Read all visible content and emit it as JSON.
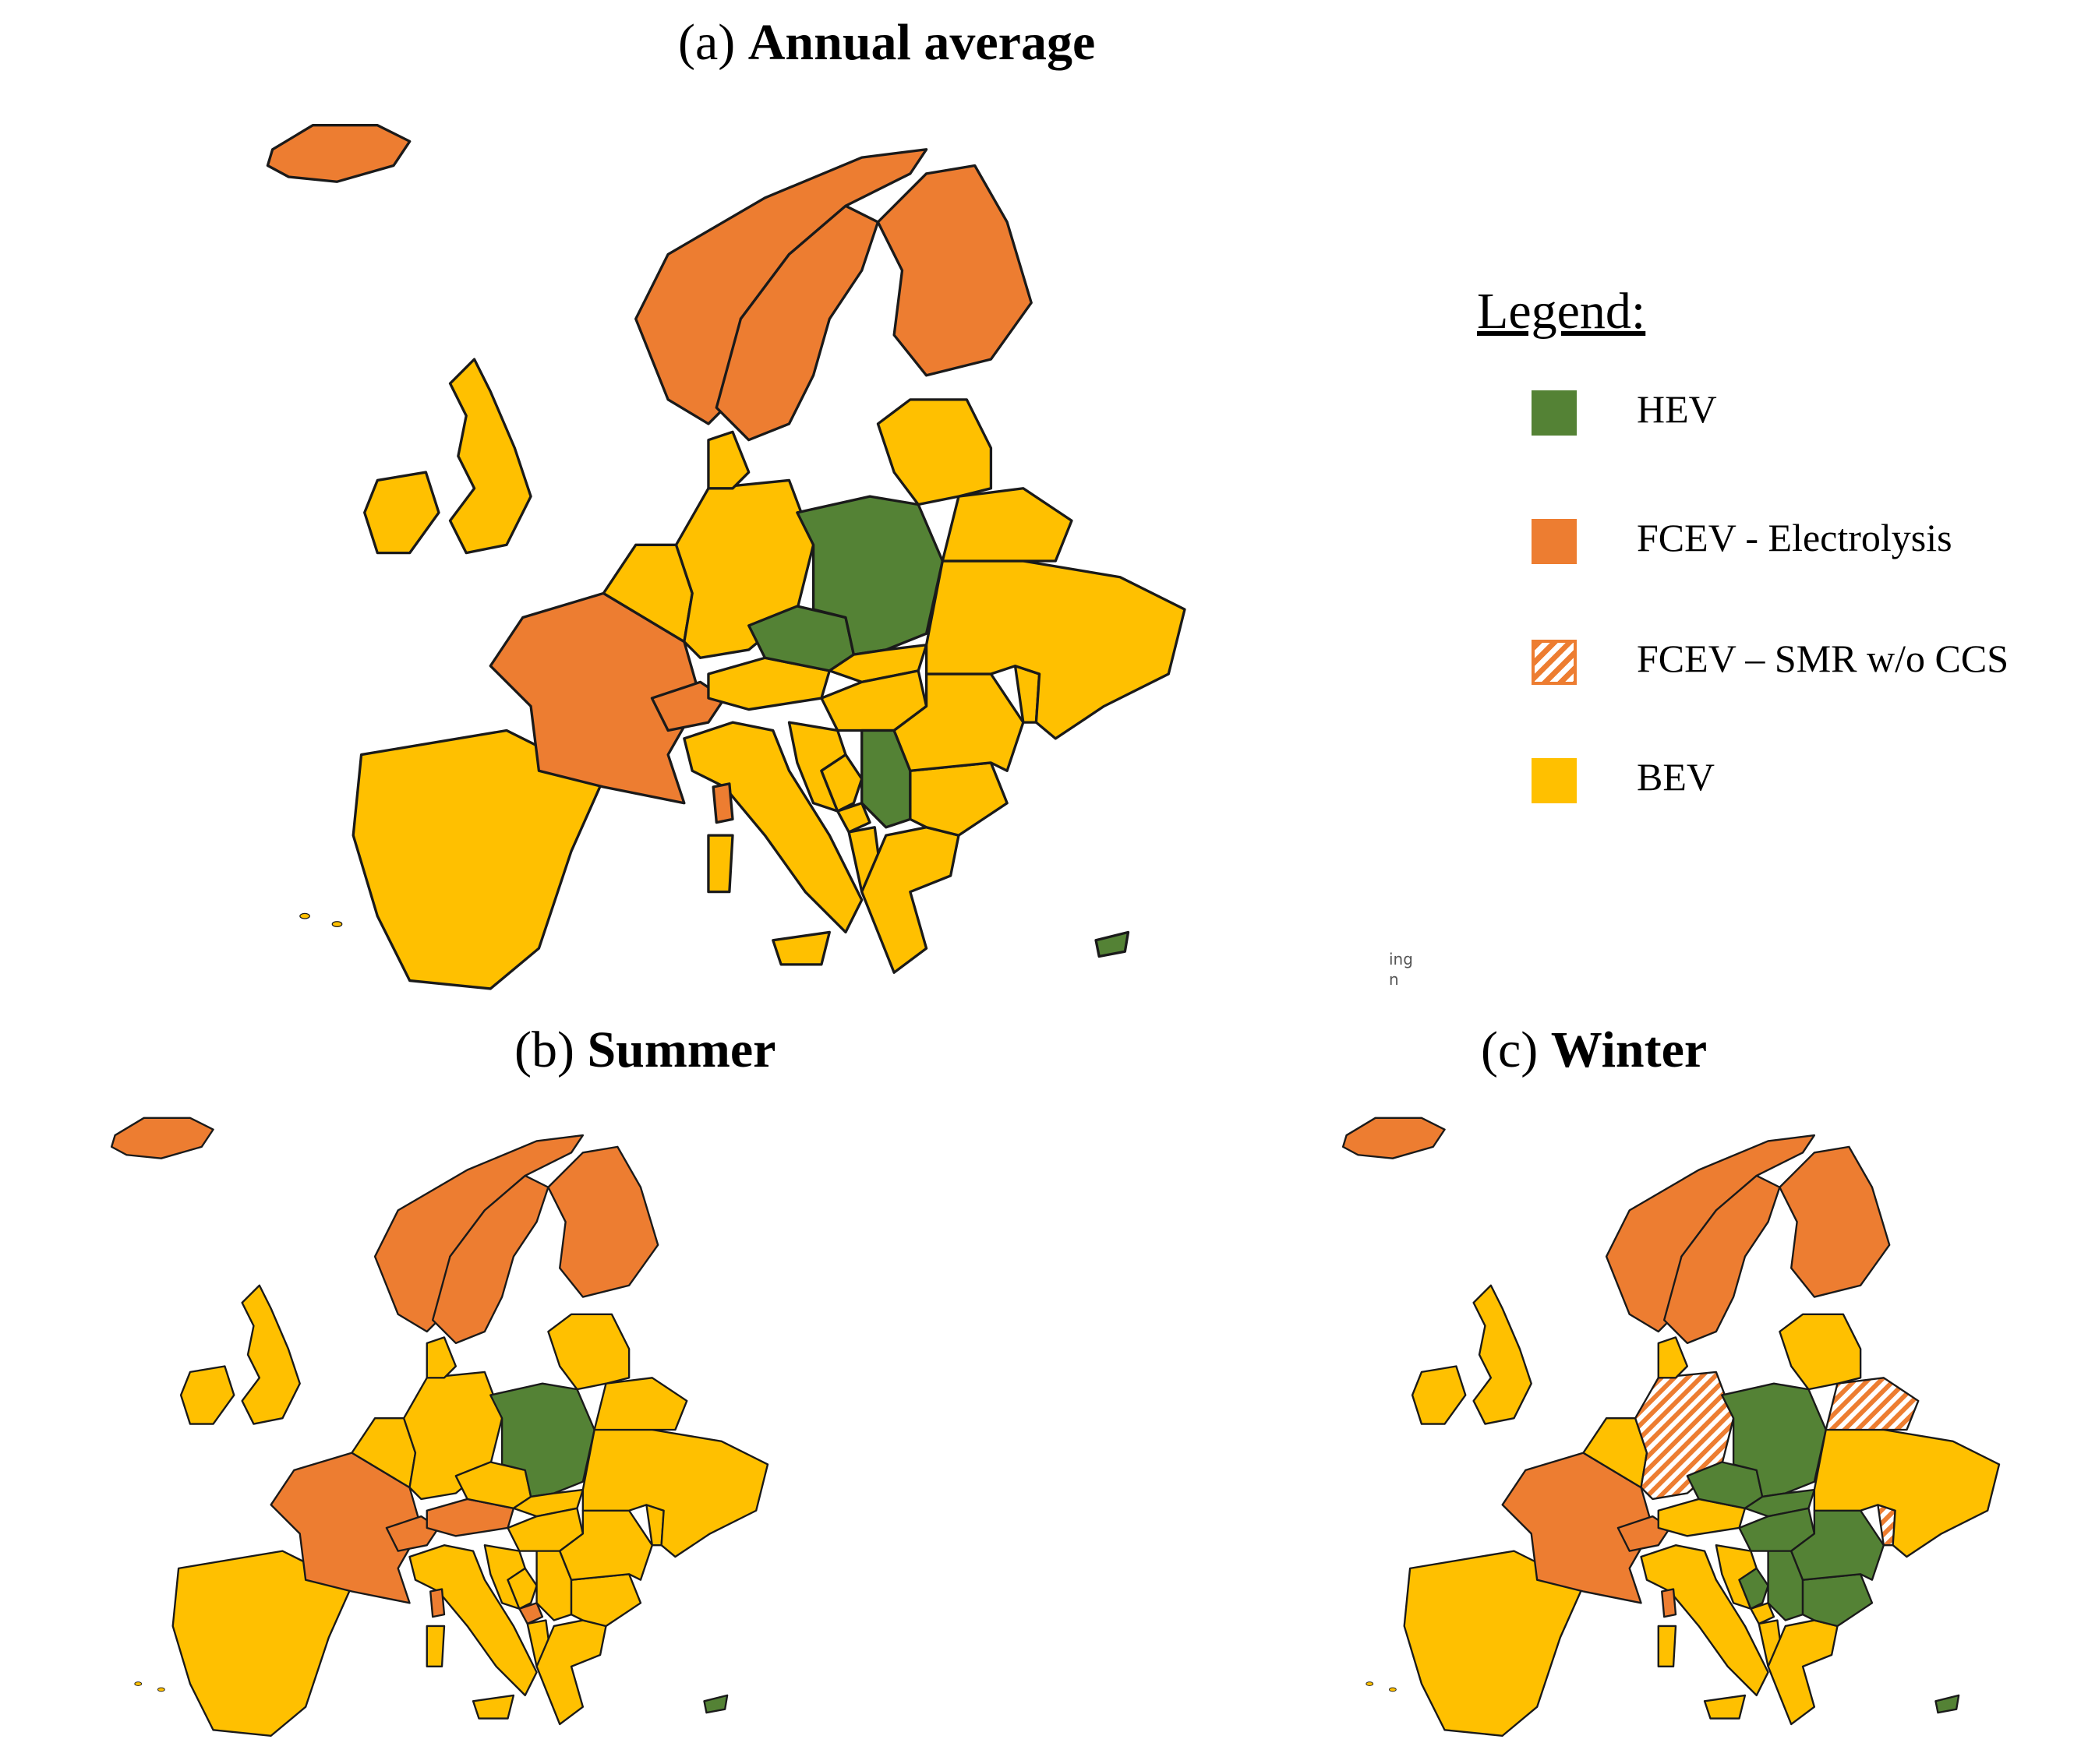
{
  "titles": {
    "a": {
      "prefix": "(a)",
      "bold": "Annual average"
    },
    "b": {
      "prefix": "(b)",
      "bold": "Summer"
    },
    "c": {
      "prefix": "(c)",
      "bold": "Winter"
    }
  },
  "legend": {
    "heading": "Legend:",
    "items": [
      {
        "label": "HEV",
        "category": "hev",
        "color": "#548235",
        "pattern": "solid"
      },
      {
        "label": "FCEV - Electrolysis",
        "category": "fcev_el",
        "color": "#ED7D31",
        "pattern": "solid"
      },
      {
        "label": "FCEV – SMR w/o CCS",
        "category": "fcev_smr",
        "color": "#ED7D31",
        "pattern": "hatched"
      },
      {
        "label": "BEV",
        "category": "bev",
        "color": "#FFC000",
        "pattern": "solid"
      }
    ]
  },
  "stray_text": {
    "line1": "ing",
    "line2": "n"
  },
  "maps": {
    "annual": {
      "iceland": "fcev_el",
      "norway": "fcev_el",
      "sweden": "fcev_el",
      "finland": "fcev_el",
      "france": "fcev_el",
      "switzerland": "fcev_el",
      "corsica": "fcev_el",
      "poland": "hev",
      "czechia": "hev",
      "serbia": "hev",
      "cyprus": "hev",
      "uk": "bev",
      "ireland": "bev",
      "iberia": "bev",
      "benelux": "bev",
      "germany": "bev",
      "denmark": "bev",
      "austria": "bev",
      "hungary": "bev",
      "italy": "bev",
      "sardinia": "bev",
      "sicily": "bev",
      "croatia": "bev",
      "bosnia": "bev",
      "montenegro": "bev",
      "albania": "bev",
      "greece": "bev",
      "bulgaria": "bev",
      "romania": "bev",
      "slovakia": "bev",
      "ukraine": "bev",
      "belarus": "bev",
      "baltics": "bev",
      "moldova": "bev"
    },
    "summer": {
      "iceland": "fcev_el",
      "norway": "fcev_el",
      "sweden": "fcev_el",
      "finland": "fcev_el",
      "france": "fcev_el",
      "switzerland": "fcev_el",
      "corsica": "fcev_el",
      "austria": "fcev_el",
      "montenegro": "fcev_el",
      "poland": "hev",
      "cyprus": "hev",
      "czechia": "bev",
      "serbia": "bev",
      "uk": "bev",
      "ireland": "bev",
      "iberia": "bev",
      "benelux": "bev",
      "germany": "bev",
      "denmark": "bev",
      "hungary": "bev",
      "italy": "bev",
      "sardinia": "bev",
      "sicily": "bev",
      "croatia": "bev",
      "bosnia": "bev",
      "albania": "bev",
      "greece": "bev",
      "bulgaria": "bev",
      "romania": "bev",
      "slovakia": "bev",
      "ukraine": "bev",
      "belarus": "bev",
      "baltics": "bev",
      "moldova": "bev"
    },
    "winter": {
      "iceland": "fcev_el",
      "norway": "fcev_el",
      "sweden": "fcev_el",
      "finland": "fcev_el",
      "france": "fcev_el",
      "switzerland": "fcev_el",
      "corsica": "fcev_el",
      "germany": "fcev_smr",
      "belarus": "fcev_smr",
      "moldova": "fcev_smr",
      "poland": "hev",
      "czechia": "hev",
      "serbia": "hev",
      "cyprus": "hev",
      "bosnia": "hev",
      "bulgaria": "hev",
      "romania": "hev",
      "slovakia": "hev",
      "hungary": "hev",
      "uk": "bev",
      "ireland": "bev",
      "iberia": "bev",
      "benelux": "bev",
      "denmark": "bev",
      "austria": "bev",
      "italy": "bev",
      "sardinia": "bev",
      "sicily": "bev",
      "croatia": "bev",
      "montenegro": "bev",
      "albania": "bev",
      "greece": "bev",
      "ukraine": "bev",
      "baltics": "bev"
    }
  }
}
